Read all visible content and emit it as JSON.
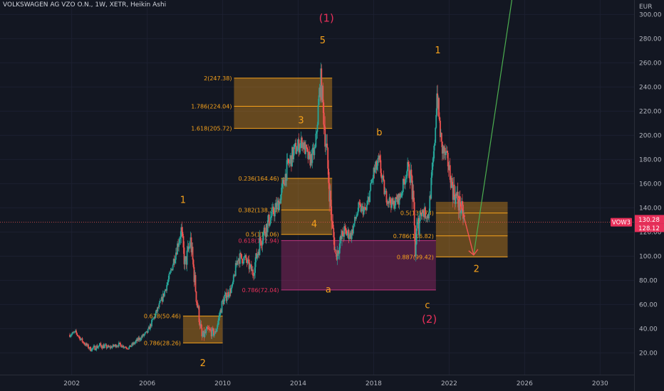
{
  "symbol_title": "VOLKSWAGEN AG VZO O.N., 1W, XETR, Heikin Ashi",
  "currency": "EUR",
  "price_tags": {
    "symbol": "VOW3",
    "last": "130.28",
    "close": "128.12"
  },
  "colors": {
    "background": "#131722",
    "up": "#26a69a",
    "down": "#ef5350",
    "label": "#f7a21b",
    "wave": "#e8305a",
    "box_orange": "#f7a21b",
    "box_magenta": "#b02a74",
    "projection": "#4caf50"
  },
  "chart_data": {
    "type": "candlestick",
    "x_axis": {
      "ticks": [
        2002,
        2006,
        2010,
        2014,
        2018,
        2022,
        2026,
        2030
      ],
      "range": [
        1998.2,
        2031.8
      ]
    },
    "y_axis": {
      "ticks": [
        20,
        40,
        60,
        80,
        100,
        120,
        140,
        160,
        180,
        200,
        220,
        240,
        260,
        280,
        300
      ],
      "tick_labels": [
        "20.00",
        "40.00",
        "60.00",
        "80.00",
        "100.00",
        "120.00",
        "140.00",
        "160.00",
        "180.00",
        "200.00",
        "220.00",
        "240.00",
        "260.00",
        "280.00",
        "300.00"
      ],
      "range": [
        2,
        312
      ]
    },
    "price_path": [
      [
        2001.9,
        38,
        32
      ],
      [
        2002.2,
        40,
        34
      ],
      [
        2002.6,
        32,
        26
      ],
      [
        2003.0,
        26,
        20
      ],
      [
        2003.5,
        30,
        22
      ],
      [
        2004.0,
        27,
        22
      ],
      [
        2004.5,
        30,
        24
      ],
      [
        2005.0,
        26,
        22
      ],
      [
        2005.5,
        34,
        27
      ],
      [
        2006.0,
        40,
        34
      ],
      [
        2006.4,
        55,
        46
      ],
      [
        2006.8,
        70,
        60
      ],
      [
        2007.2,
        90,
        78
      ],
      [
        2007.6,
        118,
        100
      ],
      [
        2007.8,
        133,
        110
      ],
      [
        2008.0,
        105,
        80
      ],
      [
        2008.3,
        125,
        100
      ],
      [
        2008.6,
        80,
        55
      ],
      [
        2008.9,
        40,
        25
      ],
      [
        2009.2,
        45,
        32
      ],
      [
        2009.6,
        42,
        30
      ],
      [
        2010.0,
        70,
        55
      ],
      [
        2010.5,
        80,
        68
      ],
      [
        2010.8,
        108,
        90
      ],
      [
        2011.2,
        105,
        90
      ],
      [
        2011.6,
        94,
        78
      ],
      [
        2012.0,
        128,
        100
      ],
      [
        2012.5,
        142,
        120
      ],
      [
        2013.0,
        155,
        135
      ],
      [
        2013.4,
        185,
        160
      ],
      [
        2013.8,
        200,
        175
      ],
      [
        2014.2,
        205,
        185
      ],
      [
        2014.6,
        190,
        168
      ],
      [
        2014.9,
        198,
        178
      ],
      [
        2015.1,
        245,
        215
      ],
      [
        2015.2,
        262,
        230
      ],
      [
        2015.5,
        210,
        165
      ],
      [
        2015.8,
        140,
        110
      ],
      [
        2016.0,
        110,
        90
      ],
      [
        2016.4,
        132,
        108
      ],
      [
        2016.8,
        125,
        110
      ],
      [
        2017.2,
        148,
        132
      ],
      [
        2017.6,
        145,
        130
      ],
      [
        2018.0,
        180,
        158
      ],
      [
        2018.3,
        190,
        165
      ],
      [
        2018.6,
        160,
        142
      ],
      [
        2019.0,
        150,
        135
      ],
      [
        2019.4,
        158,
        140
      ],
      [
        2019.8,
        182,
        165
      ],
      [
        2020.0,
        178,
        150
      ],
      [
        2020.2,
        140,
        80
      ],
      [
        2020.5,
        148,
        128
      ],
      [
        2020.9,
        142,
        125
      ],
      [
        2021.2,
        200,
        170
      ],
      [
        2021.35,
        250,
        220
      ],
      [
        2021.6,
        205,
        175
      ],
      [
        2021.9,
        190,
        170
      ],
      [
        2022.2,
        170,
        140
      ],
      [
        2022.5,
        160,
        128
      ],
      [
        2022.7,
        150,
        120
      ],
      [
        2022.85,
        135,
        125
      ]
    ],
    "wave_labels": [
      {
        "text": "1",
        "x": 2007.9,
        "y": 144,
        "style": "ew"
      },
      {
        "text": "2",
        "x": 2008.95,
        "y": 9,
        "style": "ew"
      },
      {
        "text": "3",
        "x": 2014.15,
        "y": 210,
        "style": "ew"
      },
      {
        "text": "4",
        "x": 2014.85,
        "y": 124,
        "style": "ew"
      },
      {
        "text": "5",
        "x": 2015.3,
        "y": 276,
        "style": "ew"
      },
      {
        "text": "a",
        "x": 2015.6,
        "y": 70,
        "style": "ew"
      },
      {
        "text": "b",
        "x": 2018.3,
        "y": 200,
        "style": "ew"
      },
      {
        "text": "c",
        "x": 2020.85,
        "y": 57,
        "style": "ew"
      },
      {
        "text": "1",
        "x": 2021.4,
        "y": 268,
        "style": "ew"
      },
      {
        "text": "2",
        "x": 2023.45,
        "y": 87,
        "style": "ew"
      },
      {
        "text": "(1)",
        "x": 2015.5,
        "y": 294,
        "style": "ew-big"
      },
      {
        "text": "(2)",
        "x": 2020.95,
        "y": 45,
        "style": "ew-big"
      }
    ],
    "fib_boxes": [
      {
        "x": [
          2010.6,
          2015.8
        ],
        "y": [
          205.72,
          247.38
        ],
        "color": "orange",
        "levels": [
          {
            "text": "2(247.38)",
            "value": 247.38
          },
          {
            "text": "1.786(224.04)",
            "value": 224.04
          },
          {
            "text": "1.618(205.72)",
            "value": 205.72
          }
        ]
      },
      {
        "x": [
          2013.1,
          2015.8
        ],
        "y": [
          118,
          164.46
        ],
        "color": "orange",
        "levels": [
          {
            "text": "0.236(164.46)",
            "value": 164.46
          },
          {
            "text": "0.382(138.30)",
            "value": 138.3
          },
          {
            "text": "0.5(118.06)",
            "value": 118.06
          }
        ]
      },
      {
        "x": [
          2013.1,
          2021.3
        ],
        "y": [
          72.04,
          112.94
        ],
        "color": "magenta",
        "levels": [
          {
            "text": "0.618(112.94)",
            "value": 112.94
          },
          {
            "text": "0.786(72.04)",
            "value": 72.04
          }
        ]
      },
      {
        "x": [
          2007.9,
          2010.0
        ],
        "y": [
          28.26,
          50.46
        ],
        "color": "orange",
        "levels": [
          {
            "text": "0.618(50.46)",
            "value": 50.46
          },
          {
            "text": "0.786(28.26)",
            "value": 28.26
          }
        ]
      },
      {
        "x": [
          2021.3,
          2025.1
        ],
        "y": [
          99.42,
          145
        ],
        "color": "orange",
        "levels": [
          {
            "text": "0.5(135.73)",
            "value": 135.73
          },
          {
            "text": "0.786(116.82)",
            "value": 116.82
          },
          {
            "text": "0.887(99.42)",
            "value": 99.42
          }
        ]
      }
    ],
    "projection": {
      "down": [
        [
          2022.5,
          150
        ],
        [
          2023.3,
          101
        ]
      ],
      "up": [
        [
          2023.3,
          101
        ],
        [
          2025.4,
          320
        ]
      ]
    },
    "last_price": 128.12,
    "current_price": 130.28
  }
}
